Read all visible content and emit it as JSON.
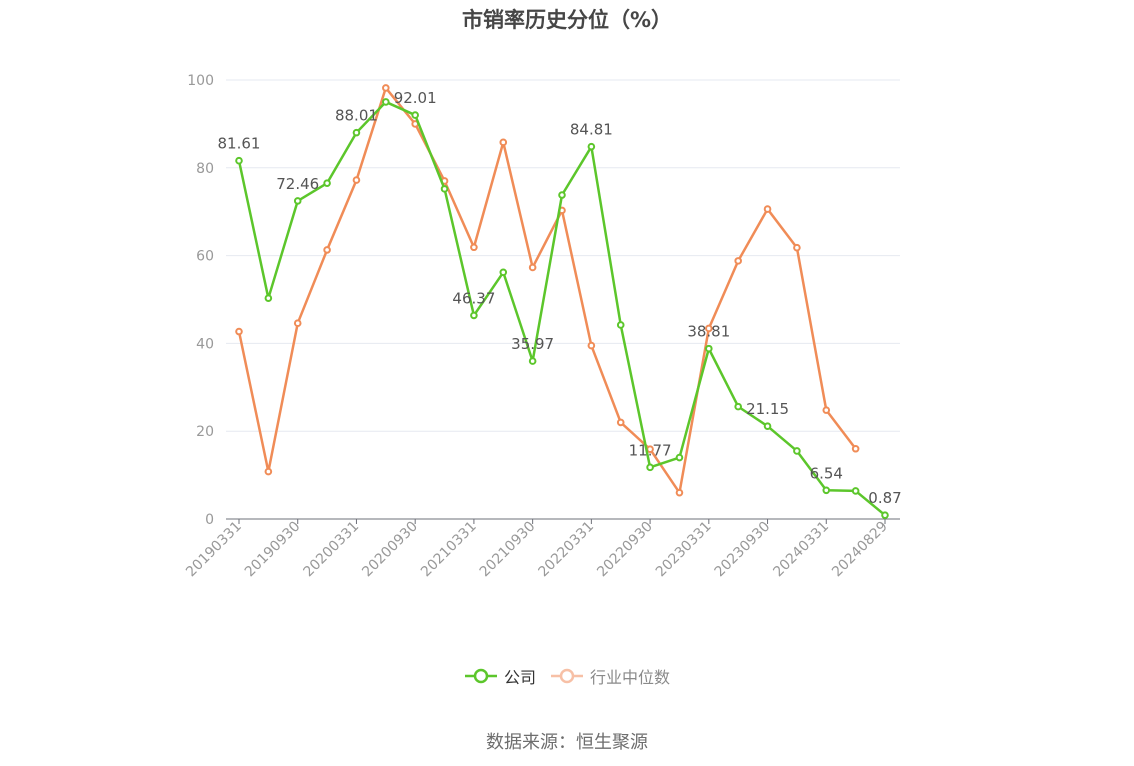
{
  "title": "市销率历史分位（%）",
  "source": "数据来源：恒生聚源",
  "colors": {
    "company": "#5cc62b",
    "industry": "#f08c57",
    "industry_legend": "#f7c0a6",
    "grid": "#e6e9f0",
    "axis": "#6e7079",
    "tick_text": "#999999",
    "label_text": "#555555"
  },
  "legend": {
    "company": "公司",
    "industry": "行业中位数"
  },
  "chart_data": {
    "type": "line",
    "title": "市销率历史分位（%）",
    "x_tick_labels": [
      "20190331",
      "20190930",
      "20200331",
      "20200930",
      "20210331",
      "20210930",
      "20220331",
      "20220930",
      "20230331",
      "20230930",
      "20240331",
      "20240829"
    ],
    "y_tick_labels": [
      "0",
      "20",
      "40",
      "60",
      "80",
      "100"
    ],
    "ylim": [
      0,
      100
    ],
    "grid": true,
    "legend_position": "bottom",
    "series": [
      {
        "name": "公司",
        "values": [
          81.61,
          50.3,
          72.46,
          76.5,
          88.01,
          95.0,
          92.01,
          75.2,
          46.37,
          56.2,
          35.97,
          73.8,
          84.81,
          44.2,
          11.77,
          14.0,
          38.81,
          25.6,
          21.15,
          15.5,
          6.54,
          6.4,
          0.87
        ],
        "labels": [
          "81.61",
          "",
          "72.46",
          "",
          "88.01",
          "",
          "92.01",
          "",
          "46.37",
          "",
          "35.97",
          "",
          "84.81",
          "",
          "11.77",
          "",
          "38.81",
          "",
          "21.15",
          "",
          "6.54",
          "",
          "0.87"
        ]
      },
      {
        "name": "行业中位数",
        "values": [
          42.7,
          10.8,
          44.6,
          61.3,
          77.2,
          98.2,
          90.0,
          77.0,
          61.9,
          85.8,
          57.3,
          70.3,
          39.5,
          22.0,
          15.9,
          6.0,
          43.4,
          58.8,
          70.6,
          61.8,
          24.8,
          16.0,
          null
        ]
      }
    ]
  }
}
